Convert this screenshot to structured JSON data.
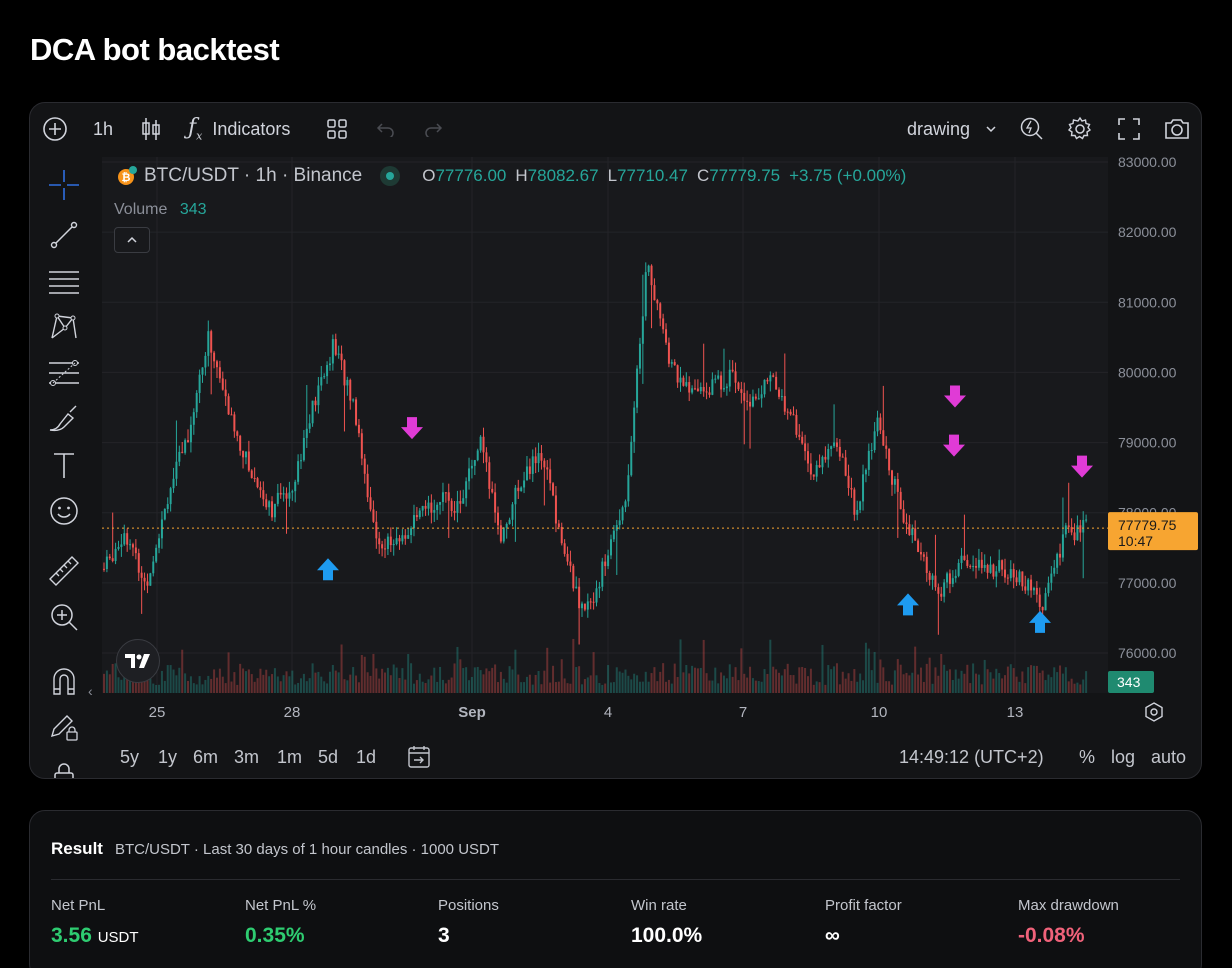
{
  "page": {
    "title": "DCA bot backtest"
  },
  "toolbar": {
    "interval": "1h",
    "indicators_label": "Indicators",
    "drawing_label": "drawing"
  },
  "legend": {
    "symbol": "BTC/USDT · 1h · Binance",
    "o_label": "O",
    "o_value": "77776.00",
    "h_label": "H",
    "h_value": "78082.67",
    "l_label": "L",
    "l_value": "77710.47",
    "c_label": "C",
    "c_value": "77779.75",
    "change": "+3.75 (+0.00%)",
    "volume_label": "Volume",
    "volume_value": "343"
  },
  "price_axis": {
    "ticks": [
      "83000.00",
      "82000.00",
      "81000.00",
      "80000.00",
      "79000.00",
      "78000.00",
      "77000.00",
      "76000.00"
    ],
    "current_price": "77779.75",
    "countdown": "10:47",
    "volume_badge": "343"
  },
  "time_axis": {
    "ticks": [
      "25",
      "28",
      "Sep",
      "4",
      "7",
      "10",
      "13"
    ]
  },
  "bottom_bar": {
    "ranges": [
      "5y",
      "1y",
      "6m",
      "3m",
      "1m",
      "5d",
      "1d"
    ],
    "clock": "14:49:12 (UTC+2)",
    "percent": "%",
    "log": "log",
    "auto": "auto"
  },
  "chart_data": {
    "type": "candlestick",
    "symbol": "BTC/USDT",
    "interval": "1h",
    "ylim": [
      75400,
      83000
    ],
    "current_price": 77779.75,
    "close_path": [
      {
        "t": 0,
        "p": 77200
      },
      {
        "t": 1,
        "p": 77750
      },
      {
        "t": 2,
        "p": 76950
      },
      {
        "t": 3,
        "p": 78200
      },
      {
        "t": 4,
        "p": 79100
      },
      {
        "t": 5,
        "p": 80500
      },
      {
        "t": 6,
        "p": 79400
      },
      {
        "t": 7,
        "p": 78600
      },
      {
        "t": 8,
        "p": 78050
      },
      {
        "t": 9,
        "p": 78400
      },
      {
        "t": 10,
        "p": 79500
      },
      {
        "t": 11,
        "p": 80400
      },
      {
        "t": 12,
        "p": 79500
      },
      {
        "t": 13,
        "p": 77600
      },
      {
        "t": 14,
        "p": 77550
      },
      {
        "t": 15,
        "p": 77900
      },
      {
        "t": 16,
        "p": 78200
      },
      {
        "t": 17,
        "p": 78100
      },
      {
        "t": 18,
        "p": 79000
      },
      {
        "t": 19,
        "p": 77650
      },
      {
        "t": 20,
        "p": 78500
      },
      {
        "t": 21,
        "p": 78850
      },
      {
        "t": 22,
        "p": 77450
      },
      {
        "t": 23,
        "p": 76500
      },
      {
        "t": 24,
        "p": 77300
      },
      {
        "t": 25,
        "p": 78300
      },
      {
        "t": 26,
        "p": 81600
      },
      {
        "t": 27,
        "p": 80200
      },
      {
        "t": 28,
        "p": 79700
      },
      {
        "t": 29,
        "p": 79800
      },
      {
        "t": 30,
        "p": 79950
      },
      {
        "t": 31,
        "p": 79600
      },
      {
        "t": 32,
        "p": 79900
      },
      {
        "t": 33,
        "p": 79300
      },
      {
        "t": 34,
        "p": 78500
      },
      {
        "t": 35,
        "p": 79100
      },
      {
        "t": 36,
        "p": 78000
      },
      {
        "t": 37,
        "p": 79300
      },
      {
        "t": 38,
        "p": 78200
      },
      {
        "t": 39,
        "p": 77400
      },
      {
        "t": 40,
        "p": 76850
      },
      {
        "t": 41,
        "p": 77300
      },
      {
        "t": 42,
        "p": 77200
      },
      {
        "t": 43,
        "p": 77200
      },
      {
        "t": 44,
        "p": 77000
      },
      {
        "t": 45,
        "p": 76700
      },
      {
        "t": 46,
        "p": 77700
      },
      {
        "t": 47,
        "p": 77780
      }
    ],
    "markers": [
      {
        "type": "buy",
        "date": "Aug 28",
        "price": 77350
      },
      {
        "type": "sell",
        "date": "Aug 30",
        "price": 79050
      },
      {
        "type": "buy",
        "date": "Sep 10",
        "price": 76850
      },
      {
        "type": "sell",
        "date": "Sep 11",
        "price": 79500
      },
      {
        "type": "sell",
        "date": "Sep 11",
        "price": 78800
      },
      {
        "type": "buy",
        "date": "Sep 13",
        "price": 76600
      },
      {
        "type": "sell",
        "date": "Sep 14",
        "price": 78500
      }
    ]
  },
  "result": {
    "title": "Result",
    "subtitle": "BTC/USDT · Last 30 days of 1 hour candles · 1000 USDT",
    "metrics": [
      {
        "label": "Net PnL",
        "value": "3.56",
        "unit": "USDT",
        "color": "#2ecc71"
      },
      {
        "label": "Net PnL %",
        "value": "0.35%",
        "unit": "",
        "color": "#2ecc71"
      },
      {
        "label": "Positions",
        "value": "3",
        "unit": "",
        "color": "#ffffff"
      },
      {
        "label": "Win rate",
        "value": "100.0%",
        "unit": "",
        "color": "#ffffff"
      },
      {
        "label": "Profit factor",
        "value": "∞",
        "unit": "",
        "color": "#ffffff"
      },
      {
        "label": "Max drawdown",
        "value": "-0.08%",
        "unit": "",
        "color": "#f0627a"
      }
    ]
  },
  "colors": {
    "up": "#26a69a",
    "down": "#ef5350",
    "buy_marker": "#1e9bf0",
    "sell_marker": "#e03bd6",
    "price_label": "#f7a531"
  }
}
